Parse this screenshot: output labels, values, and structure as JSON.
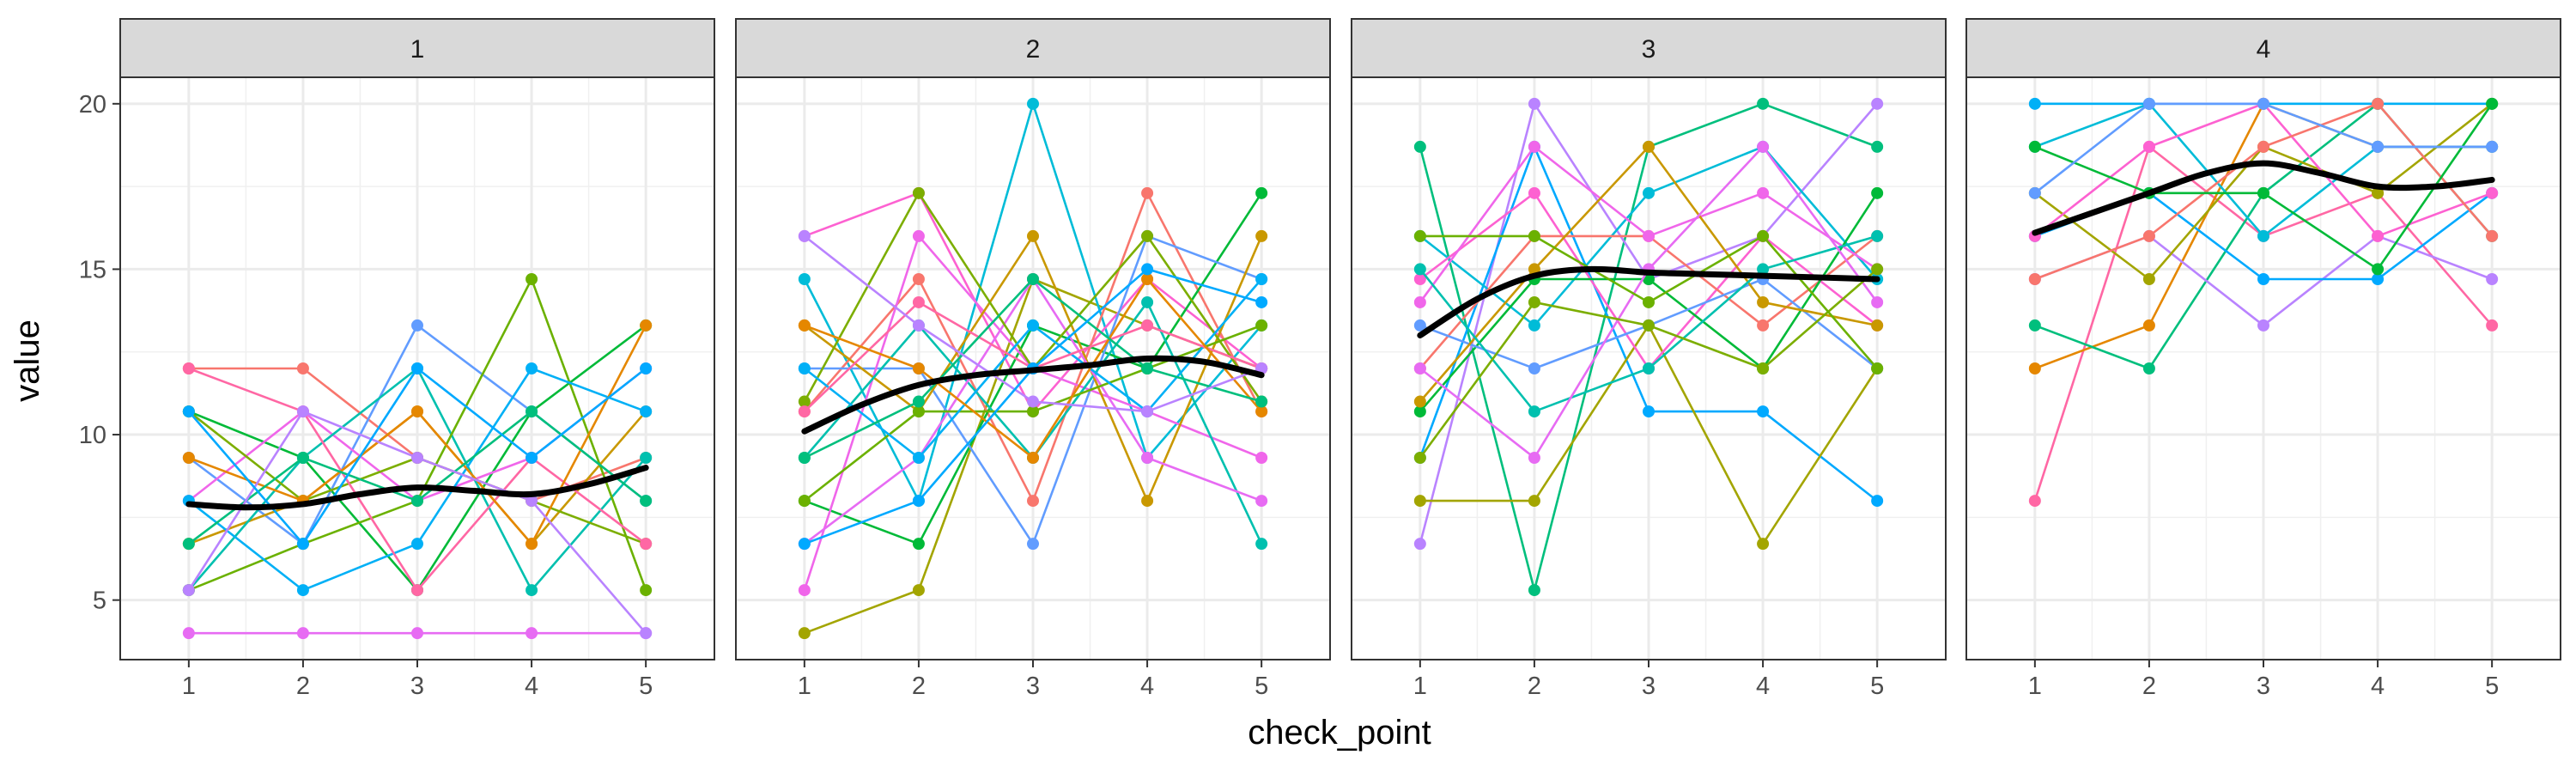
{
  "chart_data": {
    "type": "line",
    "layout": "faceted small multiples, 4 panels in one row",
    "facet_variable_values": [
      "1",
      "2",
      "3",
      "4"
    ],
    "xlabel": "check_point",
    "ylabel": "value",
    "x_ticks": [
      1,
      2,
      3,
      4,
      5
    ],
    "y_ticks": [
      5,
      10,
      15,
      20
    ],
    "ylim": [
      3.2,
      20.8
    ],
    "xlim": [
      0.4,
      5.6
    ],
    "grid": true,
    "legend": "none",
    "individual_lines": "many colored per-subject trajectories (points joined by lines) in each panel",
    "smooth_line_color": "#000000",
    "strip_background": "#d9d9d9",
    "panels": [
      {
        "facet": "1",
        "smooth": [
          [
            1,
            7.9
          ],
          [
            1.5,
            7.8
          ],
          [
            2,
            7.9
          ],
          [
            2.5,
            8.2
          ],
          [
            3,
            8.4
          ],
          [
            3.5,
            8.3
          ],
          [
            4,
            8.2
          ],
          [
            4.5,
            8.5
          ],
          [
            5,
            9.0
          ]
        ],
        "subjects": [
          [
            12,
            12,
            9.3,
            8,
            9.3
          ],
          [
            10.7,
            9.3,
            5.3,
            10.7,
            13.3
          ],
          [
            9.3,
            6.7,
            13.3,
            10.7,
            8
          ],
          [
            8,
            10.7,
            8,
            9.3,
            12
          ],
          [
            6.7,
            8,
            10.7,
            6.7,
            10.7
          ],
          [
            5.3,
            9.3,
            12,
            5.3,
            9.3
          ],
          [
            4,
            4,
            4,
            4,
            4
          ],
          [
            10.7,
            8,
            9.3,
            8,
            6.7
          ],
          [
            5.3,
            6.7,
            8,
            14.7,
            5.3
          ],
          [
            8,
            5.3,
            6.7,
            12,
            10.7
          ],
          [
            12,
            10.7,
            5.3,
            9.3,
            6.7
          ],
          [
            9.3,
            8,
            10.7,
            6.7,
            13.3
          ],
          [
            6.7,
            9.3,
            8,
            10.7,
            8
          ],
          [
            5.3,
            10.7,
            9.3,
            8,
            4
          ],
          [
            10.7,
            6.7,
            12,
            9.3,
            12
          ]
        ]
      },
      {
        "facet": "2",
        "smooth": [
          [
            1,
            10.1
          ],
          [
            1.5,
            10.9
          ],
          [
            2,
            11.5
          ],
          [
            2.5,
            11.8
          ],
          [
            3,
            11.95
          ],
          [
            3.5,
            12.1
          ],
          [
            4,
            12.3
          ],
          [
            4.5,
            12.2
          ],
          [
            5,
            11.8
          ]
        ],
        "subjects": [
          [
            4,
            5.3,
            14.7,
            13.3,
            12
          ],
          [
            14.7,
            8,
            20,
            9.3,
            13.3
          ],
          [
            16,
            17.3,
            10.7,
            14.7,
            12
          ],
          [
            10.7,
            14.7,
            8,
            17.3,
            10.7
          ],
          [
            8,
            6.7,
            13.3,
            12,
            17.3
          ],
          [
            12,
            12,
            6.7,
            16,
            14.7
          ],
          [
            5.3,
            16,
            12,
            10.7,
            9.3
          ],
          [
            13.3,
            10.7,
            16,
            8,
            16
          ],
          [
            9.3,
            13.3,
            9.3,
            14,
            6.7
          ],
          [
            6.7,
            9.3,
            14.7,
            9.3,
            8
          ],
          [
            11,
            17.3,
            12,
            16,
            11
          ],
          [
            8,
            10.7,
            10.7,
            12,
            13.3
          ],
          [
            12,
            9.3,
            13.3,
            10.7,
            14.7
          ],
          [
            10.7,
            14,
            12,
            13.3,
            12
          ],
          [
            13.3,
            12,
            9.3,
            14.7,
            10.7
          ],
          [
            9.3,
            11,
            14.7,
            12,
            11
          ],
          [
            16,
            13.3,
            11,
            10.7,
            12
          ],
          [
            6.7,
            8,
            12,
            15,
            14
          ]
        ]
      },
      {
        "facet": "3",
        "smooth": [
          [
            1,
            13.0
          ],
          [
            1.5,
            14.1
          ],
          [
            2,
            14.8
          ],
          [
            2.5,
            15.0
          ],
          [
            3,
            14.9
          ],
          [
            3.5,
            14.85
          ],
          [
            4,
            14.8
          ],
          [
            4.5,
            14.75
          ],
          [
            5,
            14.7
          ]
        ],
        "subjects": [
          [
            18.7,
            5.3,
            18.7,
            20,
            18.7
          ],
          [
            6.7,
            20,
            14.7,
            16,
            20
          ],
          [
            9.3,
            18.7,
            10.7,
            10.7,
            8
          ],
          [
            8,
            8,
            13.3,
            6.7,
            12
          ],
          [
            16,
            13.3,
            17.3,
            18.7,
            14.7
          ],
          [
            14.7,
            17.3,
            12,
            16,
            13.3
          ],
          [
            12,
            16,
            16,
            13.3,
            16
          ],
          [
            10.7,
            14.7,
            14.7,
            12,
            17.3
          ],
          [
            13.3,
            12,
            13.3,
            14.7,
            12
          ],
          [
            14,
            18.7,
            16,
            17.3,
            15
          ],
          [
            11,
            15,
            18.7,
            14,
            13.3
          ],
          [
            15,
            10.7,
            12,
            15,
            16
          ],
          [
            12,
            9.3,
            15,
            18.7,
            14
          ],
          [
            9.3,
            14,
            13.3,
            12,
            15
          ],
          [
            16,
            16,
            14,
            16,
            12
          ]
        ]
      },
      {
        "facet": "4",
        "smooth": [
          [
            1,
            16.1
          ],
          [
            1.5,
            16.7
          ],
          [
            2,
            17.3
          ],
          [
            2.5,
            17.9
          ],
          [
            3,
            18.2
          ],
          [
            3.5,
            17.9
          ],
          [
            4,
            17.5
          ],
          [
            4.5,
            17.5
          ],
          [
            5,
            17.7
          ]
        ],
        "subjects": [
          [
            20,
            20,
            20,
            20,
            20
          ],
          [
            8,
            18.7,
            16,
            17.3,
            13.3
          ],
          [
            12,
            13.3,
            20,
            18.7,
            18.7
          ],
          [
            13.3,
            12,
            17.3,
            20,
            16
          ],
          [
            14.7,
            16,
            13.3,
            16,
            14.7
          ],
          [
            16,
            17.3,
            14.7,
            14.7,
            17.3
          ],
          [
            17.3,
            14.7,
            18.7,
            17.3,
            20
          ],
          [
            18.7,
            20,
            16,
            18.7,
            18.7
          ],
          [
            16,
            18.7,
            20,
            16,
            17.3
          ],
          [
            14.7,
            16,
            18.7,
            20,
            16
          ],
          [
            18.7,
            17.3,
            17.3,
            15,
            20
          ],
          [
            17.3,
            20,
            20,
            18.7,
            18.7
          ]
        ]
      }
    ]
  }
}
